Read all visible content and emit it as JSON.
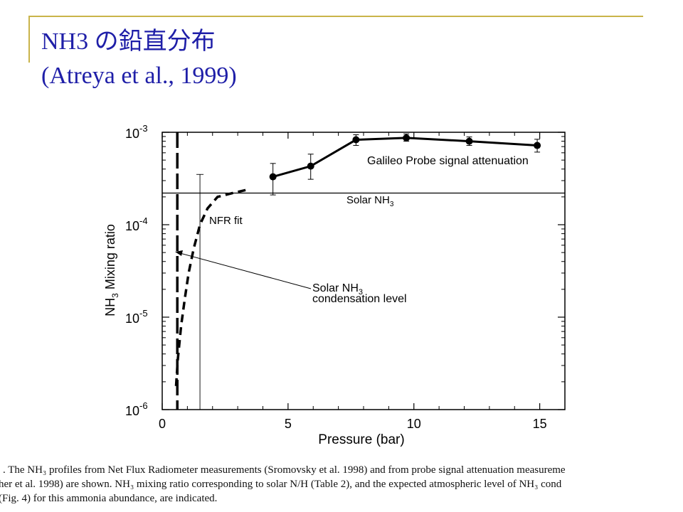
{
  "slide": {
    "title_line1": "NH3 の鉛直分布",
    "title_line2": "(Atreya et al., 1999)",
    "accent_color": "#1f1fa8",
    "rule_color": "#c9b44a"
  },
  "chart_data": {
    "type": "line",
    "xlabel": "Pressure (bar)",
    "ylabel_main": "NH",
    "ylabel_sub": "3",
    "ylabel_rest": " Mixing ratio",
    "xlim": [
      0,
      16
    ],
    "ylim_exp": [
      -6,
      -3
    ],
    "y_scale": "log",
    "x_ticks": [
      0,
      5,
      10,
      15
    ],
    "x_tick_labels": [
      "0",
      "5",
      "10",
      "15"
    ],
    "y_ticks": [
      {
        "base": "10",
        "exp": "-6",
        "value": 1e-06
      },
      {
        "base": "10",
        "exp": "-5",
        "value": 1e-05
      },
      {
        "base": "10",
        "exp": "-4",
        "value": 0.0001
      },
      {
        "base": "10",
        "exp": "-3",
        "value": 0.001
      }
    ],
    "series": [
      {
        "name": "Galileo Probe signal attenuation",
        "style": "solid-markers",
        "x": [
          4.4,
          5.9,
          7.7,
          9.7,
          12.2,
          14.9
        ],
        "y": [
          0.00033,
          0.00043,
          0.00083,
          0.00087,
          0.0008,
          0.00072
        ],
        "err_low": [
          0.00021,
          0.00031,
          0.00072,
          0.0008,
          0.00072,
          0.00061
        ],
        "err_high": [
          0.00046,
          0.00058,
          0.00094,
          0.00096,
          0.00089,
          0.00084
        ]
      },
      {
        "name": "NFR fit",
        "style": "dashed",
        "x": [
          0.55,
          0.62,
          0.75,
          0.9,
          1.05,
          1.25,
          1.5,
          1.8,
          2.2,
          2.8,
          3.4
        ],
        "y": [
          1.8e-06,
          3.5e-06,
          8e-06,
          1.6e-05,
          3e-05,
          5.5e-05,
          0.0001,
          0.00015,
          0.0002,
          0.00022,
          0.00024
        ]
      }
    ],
    "reference_lines": {
      "solar_nh3": {
        "y": 0.00022,
        "label_main": "Solar NH",
        "label_sub": "3"
      },
      "condensation_level": {
        "x": 0.6
      },
      "nfr_error_bar": {
        "x": 1.5,
        "y_low": 1e-06,
        "y_high": 0.00035
      }
    },
    "annotations": {
      "galileo": "Galileo Probe signal attenuation",
      "nfr": "NFR fit",
      "condensation_line1_main": "Solar NH",
      "condensation_line1_sub": "3",
      "condensation_line2": "condensation level"
    }
  },
  "caption": {
    "line1": ". The NH₃ profiles from Net Flux Radiometer measurements (Sromovsky et al. 1998) and from probe signal attenuation measureme",
    "line2": "her et al. 1998) are shown. NH₃ mixing ratio corresponding to solar N/H (Table 2), and the expected atmospheric level of NH₃ cond",
    "line3": "(Fig. 4) for this ammonia abundance, are indicated."
  }
}
